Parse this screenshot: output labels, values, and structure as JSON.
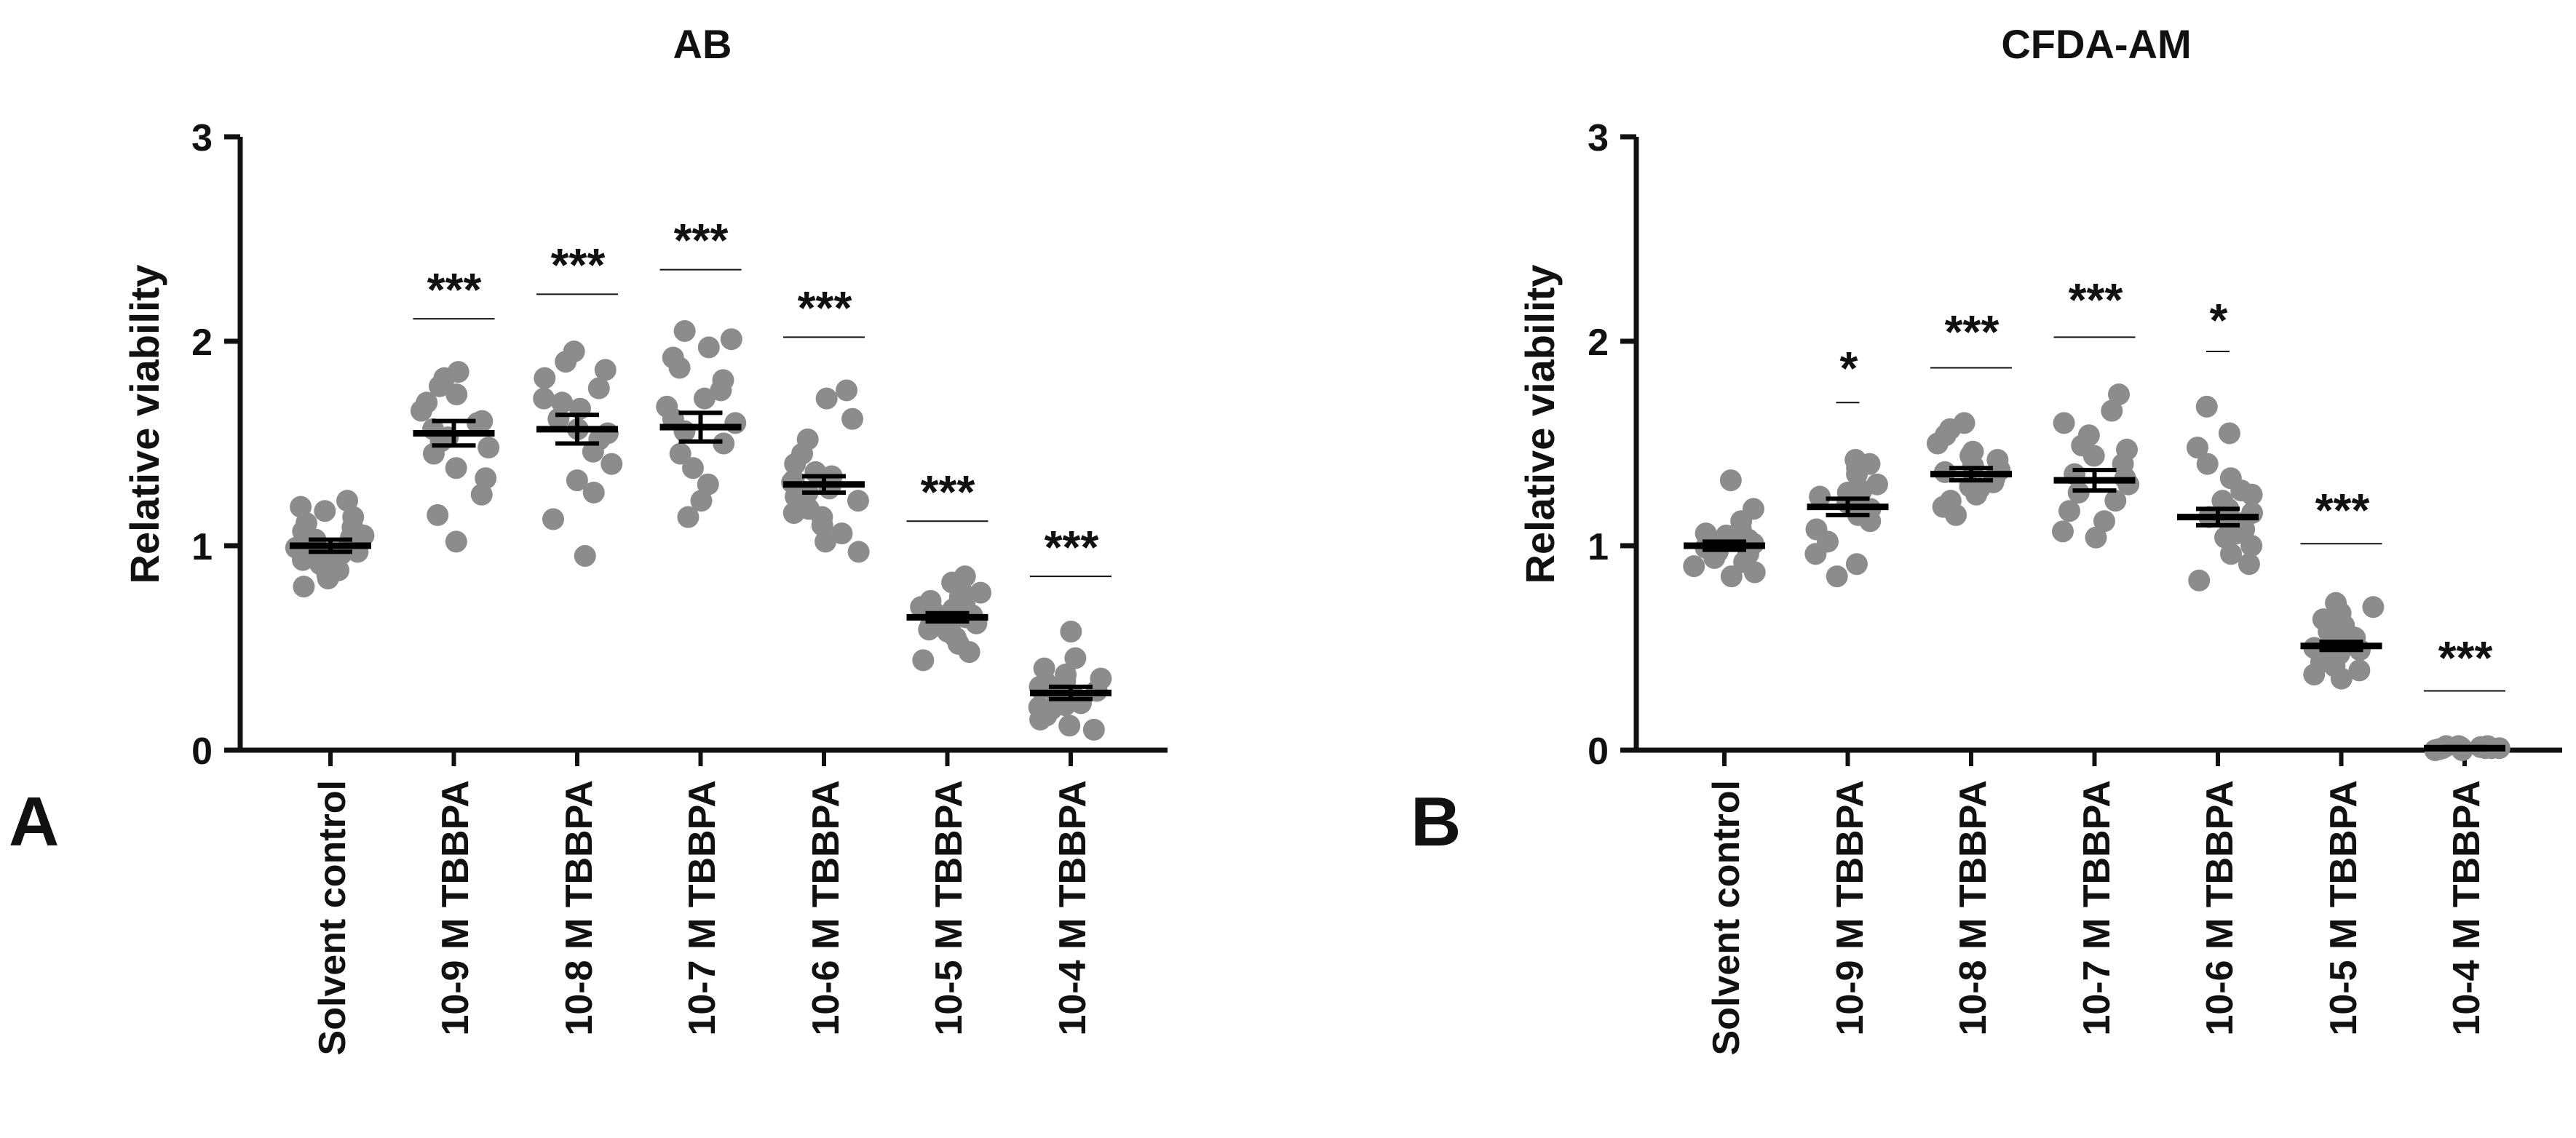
{
  "panels": [
    {
      "panel_label": "A",
      "chart_data": {
        "type": "scatter",
        "title": "AB",
        "ylabel": "Relative viability",
        "xlabel": "",
        "ylim": [
          0,
          3
        ],
        "yticks": [
          "0",
          "1",
          "2",
          "3"
        ],
        "categories": [
          "Solvent control",
          "10-9 M TBBPA",
          "10-8 M TBBPA",
          "10-7 M TBBPA",
          "10-6 M TBBPA",
          "10-5 M TBBPA",
          "10-4 M TBBPA"
        ],
        "means": [
          1.0,
          1.55,
          1.57,
          1.58,
          1.3,
          0.65,
          0.28
        ],
        "sem": [
          0.03,
          0.06,
          0.07,
          0.07,
          0.04,
          0.02,
          0.03
        ],
        "significance": [
          "",
          "***",
          "***",
          "***",
          "***",
          "***",
          "***"
        ],
        "sig_line_y": [
          null,
          2.11,
          2.23,
          2.35,
          2.02,
          1.12,
          0.85
        ],
        "points": [
          [
            1.22,
            1.19,
            1.17,
            1.14,
            1.11,
            1.09,
            1.07,
            1.05,
            1.03,
            1.01,
            0.99,
            0.98,
            0.96,
            0.95,
            0.93,
            0.91,
            0.88,
            0.86,
            0.84,
            0.8,
            1.04,
            0.97
          ],
          [
            1.85,
            1.82,
            1.78,
            1.74,
            1.7,
            1.66,
            1.61,
            1.57,
            1.53,
            1.48,
            1.45,
            1.38,
            1.33,
            1.25,
            1.15,
            1.02,
            1.6,
            1.51
          ],
          [
            1.95,
            1.9,
            1.86,
            1.82,
            1.77,
            1.72,
            1.67,
            1.62,
            1.57,
            1.52,
            1.46,
            1.4,
            1.32,
            1.26,
            1.13,
            0.95,
            1.55,
            1.7
          ],
          [
            2.05,
            2.01,
            1.97,
            1.92,
            1.87,
            1.81,
            1.76,
            1.68,
            1.62,
            1.56,
            1.5,
            1.45,
            1.38,
            1.3,
            1.22,
            1.14,
            1.6,
            1.72
          ],
          [
            1.76,
            1.72,
            1.62,
            1.52,
            1.45,
            1.4,
            1.36,
            1.32,
            1.29,
            1.26,
            1.22,
            1.18,
            1.14,
            1.1,
            1.06,
            1.02,
            0.97,
            1.34,
            1.24,
            1.31,
            1.28,
            1.16
          ],
          [
            0.85,
            0.82,
            0.79,
            0.77,
            0.75,
            0.73,
            0.71,
            0.69,
            0.67,
            0.65,
            0.63,
            0.61,
            0.59,
            0.57,
            0.55,
            0.52,
            0.48,
            0.44,
            0.66,
            0.7,
            0.62,
            0.58
          ],
          [
            0.58,
            0.45,
            0.4,
            0.37,
            0.35,
            0.33,
            0.31,
            0.29,
            0.27,
            0.25,
            0.23,
            0.21,
            0.19,
            0.17,
            0.15,
            0.12,
            0.1,
            0.3,
            0.26,
            0.22,
            0.34,
            0.2
          ]
        ]
      }
    },
    {
      "panel_label": "B",
      "chart_data": {
        "type": "scatter",
        "title": "CFDA-AM",
        "ylabel": "Relative viability",
        "xlabel": "",
        "ylim": [
          0,
          3
        ],
        "yticks": [
          "0",
          "1",
          "2",
          "3"
        ],
        "categories": [
          "Solvent control",
          "10-9 M TBBPA",
          "10-8 M TBBPA",
          "10-7 M TBBPA",
          "10-6 M TBBPA",
          "10-5 M TBBPA",
          "10-4 M TBBPA"
        ],
        "means": [
          1.0,
          1.19,
          1.35,
          1.32,
          1.14,
          0.51,
          0.01
        ],
        "sem": [
          0.02,
          0.04,
          0.03,
          0.05,
          0.04,
          0.02,
          0.005
        ],
        "significance": [
          "",
          "*",
          "***",
          "***",
          "*",
          "***",
          "***"
        ],
        "sig_line_y": [
          null,
          1.7,
          1.87,
          2.02,
          1.95,
          1.01,
          0.29
        ],
        "points": [
          [
            1.32,
            1.18,
            1.12,
            1.08,
            1.05,
            1.03,
            1.01,
            0.99,
            0.98,
            0.96,
            0.94,
            0.92,
            0.9,
            0.87,
            0.85,
            1.06,
            1.02,
            0.97
          ],
          [
            1.42,
            1.4,
            1.38,
            1.35,
            1.3,
            1.27,
            1.24,
            1.21,
            1.18,
            1.15,
            1.12,
            1.08,
            1.02,
            0.96,
            0.91,
            0.85,
            1.2,
            1.26
          ],
          [
            1.6,
            1.57,
            1.54,
            1.5,
            1.46,
            1.42,
            1.39,
            1.36,
            1.33,
            1.31,
            1.28,
            1.25,
            1.22,
            1.19,
            1.15,
            1.37,
            1.44,
            1.29
          ],
          [
            1.74,
            1.66,
            1.6,
            1.54,
            1.49,
            1.44,
            1.4,
            1.35,
            1.3,
            1.26,
            1.22,
            1.17,
            1.12,
            1.07,
            1.04,
            1.33,
            1.47
          ],
          [
            1.68,
            1.55,
            1.48,
            1.4,
            1.33,
            1.27,
            1.22,
            1.18,
            1.14,
            1.11,
            1.08,
            1.04,
            1.0,
            0.96,
            0.91,
            0.83,
            1.16,
            1.06,
            1.25,
            1.12
          ],
          [
            0.72,
            0.7,
            0.67,
            0.64,
            0.61,
            0.58,
            0.55,
            0.53,
            0.51,
            0.49,
            0.47,
            0.45,
            0.43,
            0.41,
            0.39,
            0.37,
            0.35,
            0.5,
            0.56,
            0.46
          ],
          [
            0.02,
            0.01,
            0.015,
            0.005,
            0.0,
            0.01,
            0.02,
            0.01,
            0.005,
            0.015,
            0.01,
            0.0,
            0.02,
            0.01
          ]
        ]
      }
    }
  ]
}
